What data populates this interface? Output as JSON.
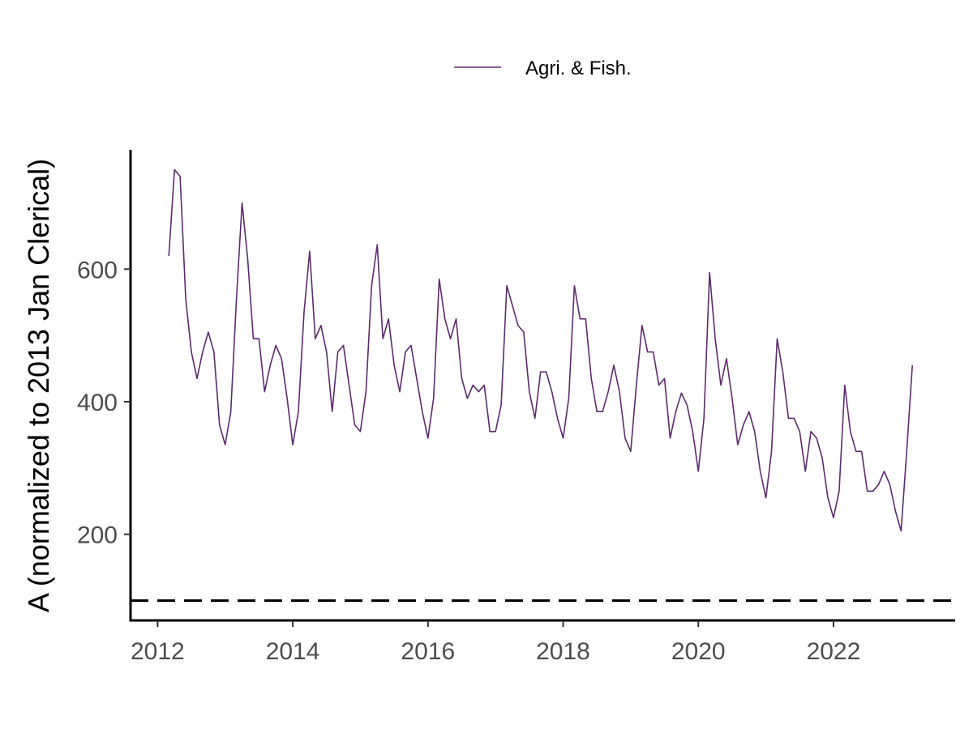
{
  "chart_data": {
    "type": "line",
    "title": "",
    "xlabel": "",
    "ylabel": "A (normalized to 2013 Jan Clerical)",
    "x_ticks": [
      2012,
      2014,
      2016,
      2018,
      2020,
      2022
    ],
    "y_ticks": [
      200,
      400,
      600
    ],
    "xlim": [
      2011.6,
      2023.8
    ],
    "ylim": [
      70,
      780
    ],
    "grid": false,
    "legend_position": "top",
    "reference_line": {
      "y": 100,
      "style": "dashed",
      "color": "#000000"
    },
    "series": [
      {
        "name": "Agri. & Fish.",
        "color": "#5E2A6E",
        "start": {
          "year": 2012,
          "month": 3
        },
        "frequency": "monthly",
        "values": [
          620,
          750,
          740,
          555,
          475,
          435,
          475,
          505,
          475,
          365,
          335,
          385,
          555,
          700,
          615,
          495,
          495,
          415,
          455,
          485,
          465,
          405,
          335,
          385,
          535,
          627,
          495,
          515,
          475,
          385,
          475,
          485,
          425,
          365,
          355,
          415,
          575,
          637,
          495,
          525,
          455,
          415,
          475,
          485,
          435,
          385,
          345,
          405,
          585,
          525,
          495,
          525,
          435,
          405,
          425,
          415,
          425,
          355,
          355,
          395,
          575,
          545,
          515,
          505,
          415,
          375,
          445,
          445,
          415,
          375,
          345,
          405,
          575,
          525,
          525,
          435,
          385,
          385,
          415,
          455,
          415,
          345,
          325,
          425,
          515,
          475,
          475,
          425,
          435,
          345,
          385,
          413,
          395,
          355,
          295,
          375,
          595,
          495,
          425,
          465,
          405,
          335,
          365,
          385,
          355,
          295,
          255,
          325,
          495,
          445,
          375,
          375,
          355,
          295,
          355,
          345,
          315,
          255,
          225,
          265,
          425,
          355,
          325,
          325,
          265,
          265,
          275,
          295,
          275,
          235,
          205,
          325,
          455
        ]
      }
    ]
  }
}
